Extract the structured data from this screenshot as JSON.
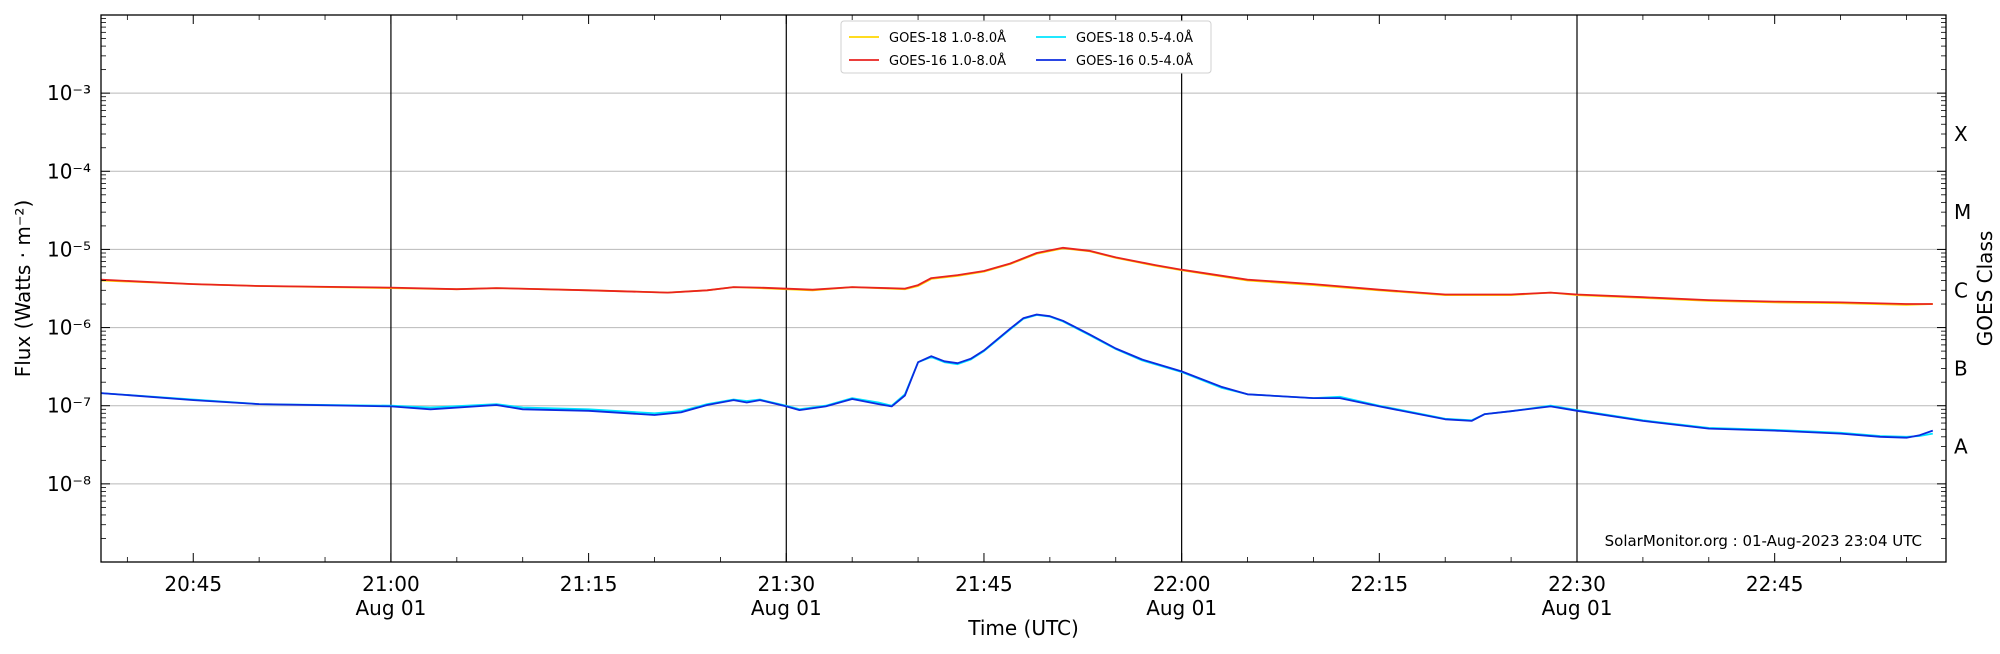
{
  "chart_data": {
    "type": "line",
    "xlabel": "Time (UTC)",
    "ylabel": "Flux (Watts · m⁻²)",
    "right_ylabel": "GOES Class",
    "credit": "SolarMonitor.org : 01-Aug-2023 23:04 UTC",
    "y_scale": "log",
    "ylim": [
      1e-09,
      0.01
    ],
    "xlim": [
      "20:38",
      "22:58"
    ],
    "grid": "horizontal at decades",
    "legend_position": "top-center",
    "y_ticks": [
      {
        "value": 1e-08,
        "label": "10⁻⁸"
      },
      {
        "value": 1e-07,
        "label": "10⁻⁷"
      },
      {
        "value": 1e-06,
        "label": "10⁻⁶"
      },
      {
        "value": 1e-05,
        "label": "10⁻⁵"
      },
      {
        "value": 0.0001,
        "label": "10⁻⁴"
      },
      {
        "value": 0.001,
        "label": "10⁻³"
      }
    ],
    "x_ticks": [
      {
        "time": "20:45",
        "label": "20:45",
        "sublabel": ""
      },
      {
        "time": "21:00",
        "label": "21:00",
        "sublabel": "Aug 01"
      },
      {
        "time": "21:15",
        "label": "21:15",
        "sublabel": ""
      },
      {
        "time": "21:30",
        "label": "21:30",
        "sublabel": "Aug 01"
      },
      {
        "time": "21:45",
        "label": "21:45",
        "sublabel": ""
      },
      {
        "time": "22:00",
        "label": "22:00",
        "sublabel": "Aug 01"
      },
      {
        "time": "22:15",
        "label": "22:15",
        "sublabel": ""
      },
      {
        "time": "22:30",
        "label": "22:30",
        "sublabel": "Aug 01"
      },
      {
        "time": "22:45",
        "label": "22:45",
        "sublabel": ""
      }
    ],
    "vertical_markers": [
      "21:00",
      "21:30",
      "22:00",
      "22:30"
    ],
    "goes_classes": [
      {
        "label": "A",
        "value": 3e-08
      },
      {
        "label": "B",
        "value": 3e-07
      },
      {
        "label": "C",
        "value": 3e-06
      },
      {
        "label": "M",
        "value": 3e-05
      },
      {
        "label": "X",
        "value": 0.0003
      }
    ],
    "series": [
      {
        "name": "GOES-18 1.0-8.0Å",
        "color": "#ffd700",
        "x": [
          "20:38",
          "20:45",
          "20:50",
          "21:00",
          "21:05",
          "21:08",
          "21:15",
          "21:21",
          "21:24",
          "21:26",
          "21:28",
          "21:32",
          "21:35",
          "21:39",
          "21:40",
          "21:41",
          "21:43",
          "21:45",
          "21:47",
          "21:49",
          "21:51",
          "21:53",
          "21:55",
          "21:58",
          "22:00",
          "22:05",
          "22:10",
          "22:15",
          "22:20",
          "22:25",
          "22:28",
          "22:30",
          "22:35",
          "22:40",
          "22:45",
          "22:50",
          "22:55",
          "22:57"
        ],
        "y": [
          4e-06,
          3.6e-06,
          3.4e-06,
          3.2e-06,
          3.1e-06,
          3.2e-06,
          3e-06,
          2.8e-06,
          3e-06,
          3.3e-06,
          3.2e-06,
          3e-06,
          3.3e-06,
          3.1e-06,
          3.4e-06,
          4.2e-06,
          4.6e-06,
          5.2e-06,
          6.5e-06,
          8.8e-06,
          1.03e-05,
          9.5e-06,
          7.8e-06,
          6.2e-06,
          5.4e-06,
          4e-06,
          3.5e-06,
          3e-06,
          2.6e-06,
          2.6e-06,
          2.8e-06,
          2.6e-06,
          2.4e-06,
          2.2e-06,
          2.1e-06,
          2.05e-06,
          1.95e-06,
          2e-06
        ]
      },
      {
        "name": "GOES-18 0.5-4.0Å",
        "color": "#00e5ff",
        "x": [
          "20:38",
          "20:45",
          "20:50",
          "21:00",
          "21:03",
          "21:08",
          "21:10",
          "21:15",
          "21:20",
          "21:22",
          "21:24",
          "21:26",
          "21:27",
          "21:28",
          "21:30",
          "21:31",
          "21:33",
          "21:35",
          "21:37",
          "21:38",
          "21:39",
          "21:40",
          "21:41",
          "21:42",
          "21:43",
          "21:44",
          "21:45",
          "21:47",
          "21:48",
          "21:49",
          "21:50",
          "21:51",
          "21:53",
          "21:55",
          "21:57",
          "22:00",
          "22:03",
          "22:05",
          "22:10",
          "22:12",
          "22:15",
          "22:20",
          "22:22",
          "22:23",
          "22:25",
          "22:28",
          "22:30",
          "22:35",
          "22:40",
          "22:45",
          "22:50",
          "22:53",
          "22:55",
          "22:56",
          "22:57"
        ],
        "y": [
          1.45e-07,
          1.2e-07,
          1.05e-07,
          1e-07,
          9.5e-08,
          1.05e-07,
          9.5e-08,
          9e-08,
          8e-08,
          8.5e-08,
          1.05e-07,
          1.2e-07,
          1.15e-07,
          1.2e-07,
          1e-07,
          9e-08,
          1e-07,
          1.25e-07,
          1.1e-07,
          1e-07,
          1.4e-07,
          3.6e-07,
          4.2e-07,
          3.6e-07,
          3.4e-07,
          3.9e-07,
          5e-07,
          9.5e-07,
          1.3e-06,
          1.45e-06,
          1.38e-06,
          1.2e-06,
          8e-07,
          5.3e-07,
          3.8e-07,
          2.7e-07,
          1.7e-07,
          1.4e-07,
          1.25e-07,
          1.3e-07,
          1e-07,
          6.8e-08,
          6.5e-08,
          7.8e-08,
          8.5e-08,
          1e-07,
          8.8e-08,
          6.5e-08,
          5.2e-08,
          4.9e-08,
          4.5e-08,
          4.1e-08,
          4e-08,
          4.1e-08,
          4.4e-08
        ]
      },
      {
        "name": "GOES-16 1.0-8.0Å",
        "color": "#e8231f",
        "x": [
          "20:38",
          "20:45",
          "20:50",
          "21:00",
          "21:05",
          "21:08",
          "21:15",
          "21:21",
          "21:24",
          "21:26",
          "21:28",
          "21:32",
          "21:35",
          "21:39",
          "21:40",
          "21:41",
          "21:43",
          "21:45",
          "21:47",
          "21:49",
          "21:51",
          "21:53",
          "21:55",
          "21:58",
          "22:00",
          "22:05",
          "22:10",
          "22:15",
          "22:20",
          "22:25",
          "22:28",
          "22:30",
          "22:35",
          "22:40",
          "22:45",
          "22:50",
          "22:55",
          "22:57"
        ],
        "y": [
          4.1e-06,
          3.6e-06,
          3.4e-06,
          3.25e-06,
          3.1e-06,
          3.2e-06,
          3e-06,
          2.8e-06,
          3e-06,
          3.3e-06,
          3.25e-06,
          3.05e-06,
          3.3e-06,
          3.15e-06,
          3.5e-06,
          4.3e-06,
          4.7e-06,
          5.3e-06,
          6.6e-06,
          9e-06,
          1.05e-05,
          9.6e-06,
          7.9e-06,
          6.3e-06,
          5.5e-06,
          4.1e-06,
          3.6e-06,
          3.05e-06,
          2.65e-06,
          2.65e-06,
          2.8e-06,
          2.65e-06,
          2.45e-06,
          2.25e-06,
          2.15e-06,
          2.1e-06,
          2e-06,
          2e-06
        ]
      },
      {
        "name": "GOES-16 0.5-4.0Å",
        "color": "#0b2be0",
        "x": [
          "20:38",
          "20:45",
          "20:50",
          "21:00",
          "21:03",
          "21:08",
          "21:10",
          "21:15",
          "21:20",
          "21:22",
          "21:24",
          "21:26",
          "21:27",
          "21:28",
          "21:30",
          "21:31",
          "21:33",
          "21:35",
          "21:37",
          "21:38",
          "21:39",
          "21:40",
          "21:41",
          "21:42",
          "21:43",
          "21:44",
          "21:45",
          "21:47",
          "21:48",
          "21:49",
          "21:50",
          "21:51",
          "21:53",
          "21:55",
          "21:57",
          "22:00",
          "22:03",
          "22:05",
          "22:10",
          "22:12",
          "22:15",
          "22:20",
          "22:22",
          "22:23",
          "22:25",
          "22:28",
          "22:30",
          "22:35",
          "22:40",
          "22:45",
          "22:50",
          "22:53",
          "22:55",
          "22:56",
          "22:57"
        ],
        "y": [
          1.45e-07,
          1.18e-07,
          1.05e-07,
          9.8e-08,
          9e-08,
          1.02e-07,
          9e-08,
          8.6e-08,
          7.6e-08,
          8.2e-08,
          1.02e-07,
          1.18e-07,
          1.1e-07,
          1.18e-07,
          9.8e-08,
          8.8e-08,
          9.8e-08,
          1.22e-07,
          1.05e-07,
          9.8e-08,
          1.35e-07,
          3.6e-07,
          4.3e-07,
          3.7e-07,
          3.5e-07,
          4e-07,
          5.1e-07,
          9.7e-07,
          1.32e-06,
          1.47e-06,
          1.4e-06,
          1.22e-06,
          8.2e-07,
          5.4e-07,
          3.9e-07,
          2.75e-07,
          1.75e-07,
          1.4e-07,
          1.25e-07,
          1.25e-07,
          9.8e-08,
          6.7e-08,
          6.4e-08,
          7.8e-08,
          8.5e-08,
          9.8e-08,
          8.6e-08,
          6.4e-08,
          5.1e-08,
          4.8e-08,
          4.4e-08,
          4e-08,
          3.9e-08,
          4.2e-08,
          4.8e-08
        ]
      }
    ],
    "legend_order": [
      0,
      1,
      2,
      3
    ]
  }
}
